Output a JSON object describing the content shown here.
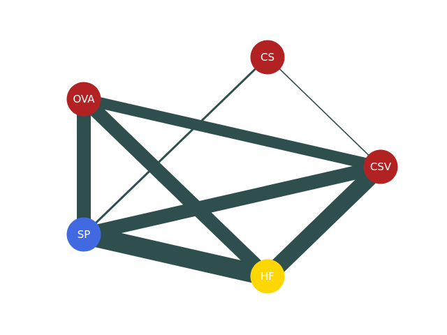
{
  "network": {
    "edge_color": "#2F4F4F",
    "nodes": [
      {
        "id": "CS",
        "label": "CS",
        "color": "#B22222"
      },
      {
        "id": "OVA",
        "label": "OVA",
        "color": "#B22222"
      },
      {
        "id": "CSV",
        "label": "CSV",
        "color": "#B22222"
      },
      {
        "id": "SP",
        "label": "SP",
        "color": "#4169E1"
      },
      {
        "id": "HF",
        "label": "HF",
        "color": "#FFD700"
      }
    ],
    "edges": [
      {
        "source": "OVA",
        "target": "SP",
        "weight": 5
      },
      {
        "source": "OVA",
        "target": "CSV",
        "weight": 4
      },
      {
        "source": "OVA",
        "target": "HF",
        "weight": 5
      },
      {
        "source": "SP",
        "target": "CSV",
        "weight": 5
      },
      {
        "source": "SP",
        "target": "HF",
        "weight": 7
      },
      {
        "source": "HF",
        "target": "CSV",
        "weight": 6
      },
      {
        "source": "CS",
        "target": "SP",
        "weight": 0.75
      },
      {
        "source": "CS",
        "target": "CSV",
        "weight": 0.4
      }
    ]
  }
}
